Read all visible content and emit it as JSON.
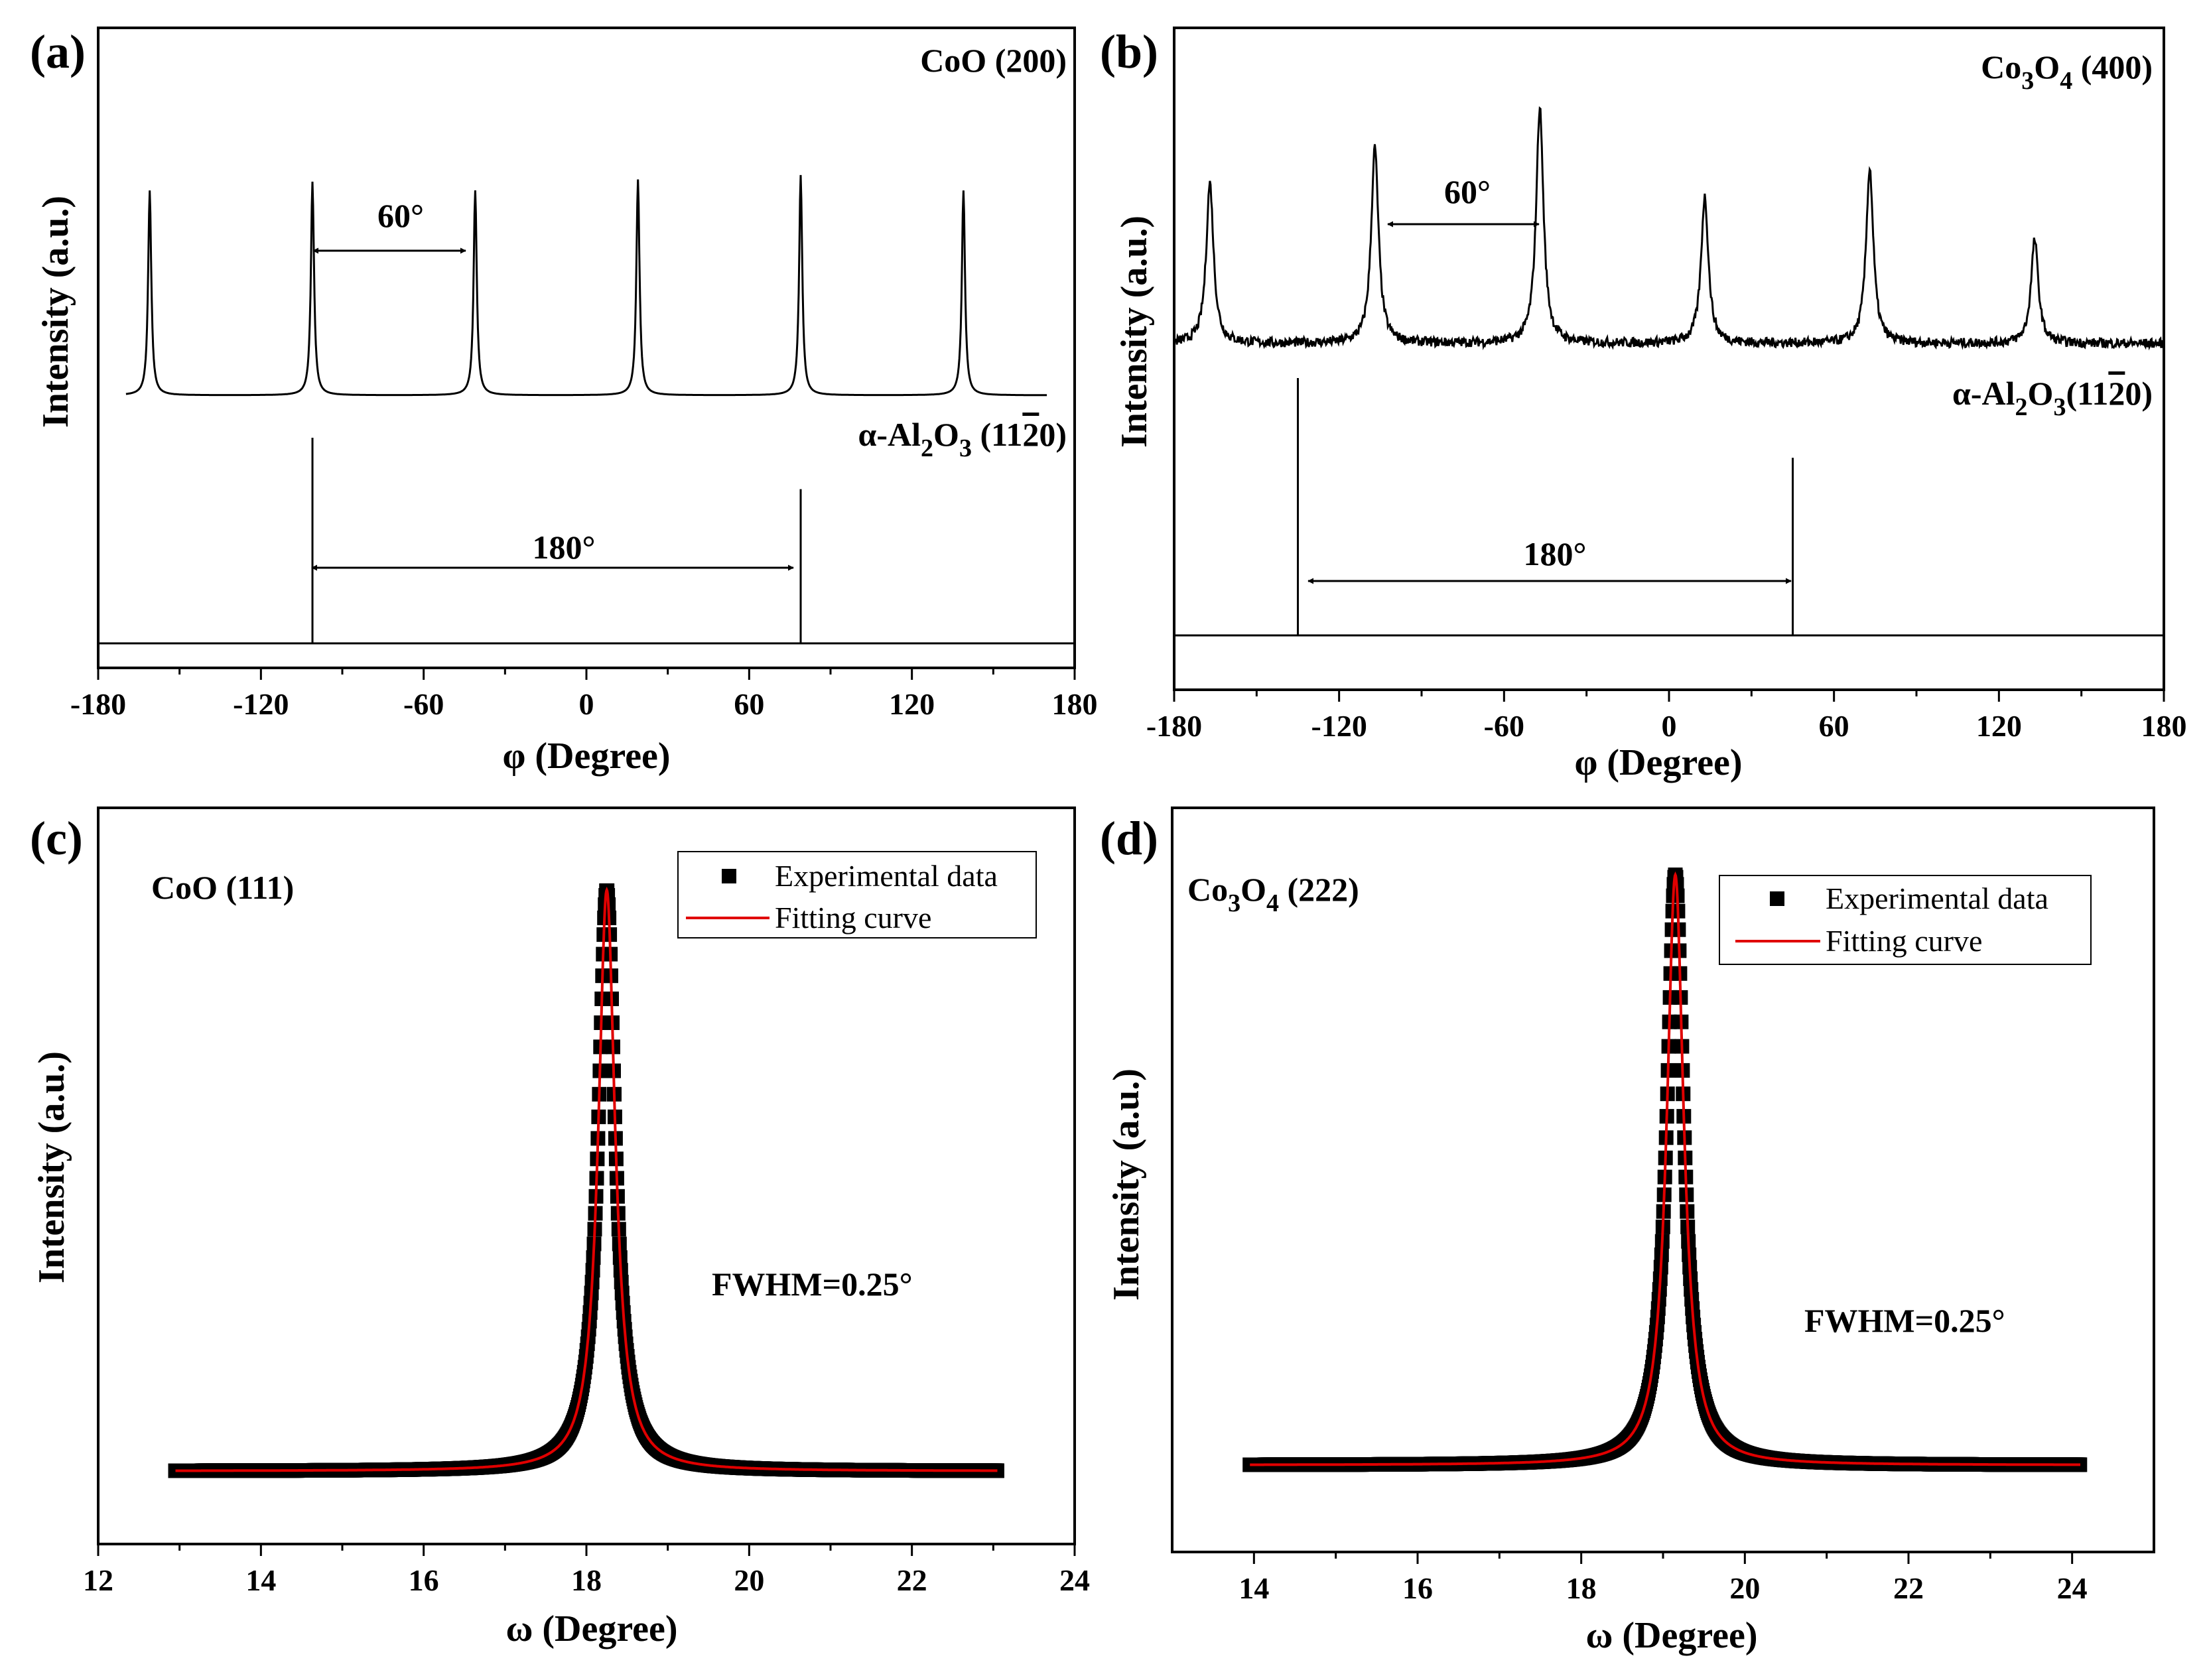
{
  "figure": {
    "panels": [
      {
        "id": "a",
        "label": "(a)",
        "xlabel": "φ (Degree)",
        "ylabel": "Intensity (a.u.)",
        "top_trace_label": "CoO (200)",
        "bottom_trace_label": {
          "prefix": "α-Al",
          "sub1": "2",
          "mid": "O",
          "sub2": "3",
          "suffix": " (11",
          "bar": "2",
          "end": "0)"
        },
        "spacing_top": "60°",
        "spacing_bottom": "180°"
      },
      {
        "id": "b",
        "label": "(b)",
        "xlabel": "φ (Degree)",
        "ylabel": "Intensity (a.u.)",
        "top_trace_label": {
          "prefix": "Co",
          "sub1": "3",
          "mid": "O",
          "sub2": "4",
          "suffix": " (400)"
        },
        "bottom_trace_label": {
          "prefix": "α-Al",
          "sub1": "2",
          "mid": "O",
          "sub2": "3",
          "suffix": "(11",
          "bar": "2",
          "end": "0)"
        },
        "spacing_top": "60°",
        "spacing_bottom": "180°"
      },
      {
        "id": "c",
        "label": "(c)",
        "xlabel": "ω (Degree)",
        "ylabel": "Intensity (a.u.)",
        "sample_label": "CoO (111)",
        "fwhm_text": "FWHM=0.25°",
        "legend": [
          "Experimental data",
          "Fitting curve"
        ]
      },
      {
        "id": "d",
        "label": "(d)",
        "xlabel": "ω (Degree)",
        "ylabel": "Intensity (a.u.)",
        "sample_label": {
          "prefix": "Co",
          "sub1": "3",
          "mid": "O",
          "sub2": "4",
          "suffix": " (222)"
        },
        "fwhm_text": "FWHM=0.25°",
        "legend": [
          "Experimental data",
          "Fitting curve"
        ]
      }
    ]
  },
  "chart_data": [
    {
      "type": "line",
      "panel": "a",
      "xlim": [
        -180,
        180
      ],
      "xticks": [
        -180,
        -120,
        -60,
        0,
        60,
        120,
        180
      ],
      "series": [
        {
          "name": "CoO (200)",
          "peaks_x": [
            -161,
            -101,
            -41,
            19,
            79,
            139
          ],
          "peak_heights": [
            0.93,
            0.97,
            0.93,
            0.98,
            1.0,
            0.93
          ],
          "noise": 0.0
        },
        {
          "name": "α-Al2O3 (11-20)",
          "peaks_x": [
            -101,
            79
          ],
          "peak_heights": [
            1.0,
            0.75
          ],
          "noise": 0.0
        }
      ],
      "color": "#000000"
    },
    {
      "type": "line",
      "panel": "b",
      "xlim": [
        -180,
        180
      ],
      "xticks": [
        -180,
        -120,
        -60,
        0,
        60,
        120,
        180
      ],
      "series": [
        {
          "name": "Co3O4 (400)",
          "peaks_x": [
            -167,
            -107,
            -47,
            13,
            73,
            133
          ],
          "peak_heights": [
            0.68,
            0.83,
            1.0,
            0.62,
            0.74,
            0.44
          ],
          "noise": 0.02
        },
        {
          "name": "α-Al2O3 (11-20)",
          "peaks_x": [
            -135,
            45
          ],
          "peak_heights": [
            1.0,
            0.69
          ],
          "noise": 0.0
        }
      ],
      "color": "#000000"
    },
    {
      "type": "scatter",
      "panel": "c",
      "xlim": [
        12,
        24
      ],
      "xticks": [
        12,
        14,
        16,
        18,
        20,
        22,
        24
      ],
      "x_range": [
        12.95,
        23.05
      ],
      "peak_center": 18.25,
      "fwhm": 0.25,
      "series": [
        {
          "name": "Experimental data",
          "color": "#000000"
        },
        {
          "name": "Fitting curve",
          "color": "#e00000"
        }
      ]
    },
    {
      "type": "scatter",
      "panel": "d",
      "xlim": [
        13,
        25
      ],
      "xticks": [
        14,
        16,
        18,
        20,
        22,
        24
      ],
      "x_range": [
        13.95,
        24.1
      ],
      "peak_center": 19.15,
      "fwhm": 0.25,
      "series": [
        {
          "name": "Experimental data",
          "color": "#000000"
        },
        {
          "name": "Fitting curve",
          "color": "#e00000"
        }
      ]
    }
  ]
}
